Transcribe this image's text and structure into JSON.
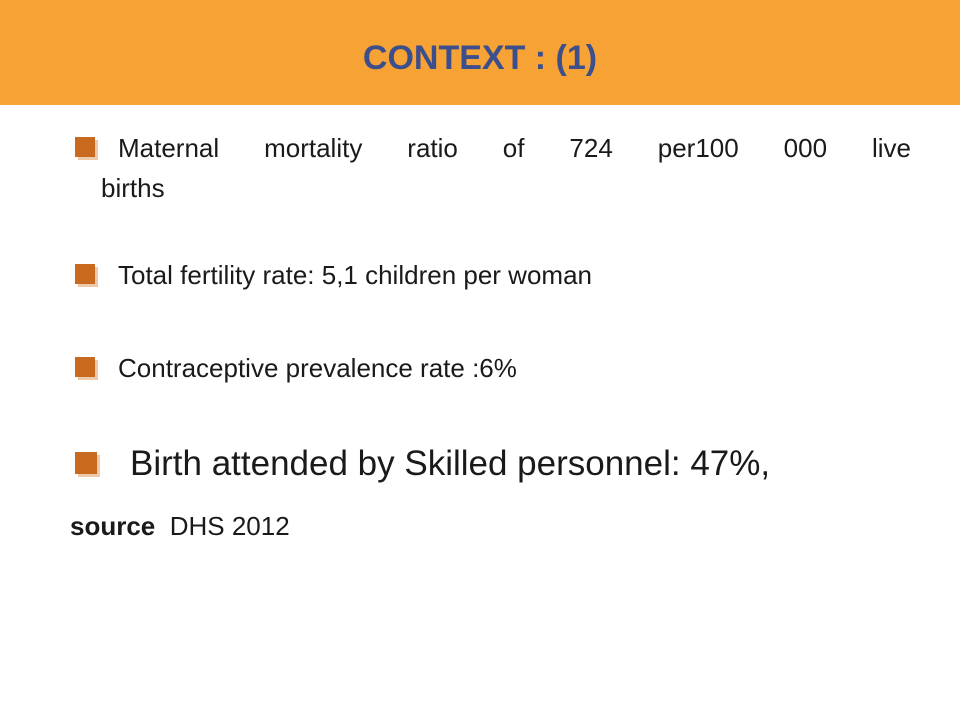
{
  "slide": {
    "title": "CONTEXT :  (1)",
    "title_color": "#3c4f8c",
    "header_bar_color": "#f7a234",
    "bullet_icon_color": "#c76a1f",
    "bullet_icon": "square-bullet-icon"
  },
  "bullets": [
    {
      "line1_words": [
        "Maternal",
        "mortality",
        "ratio",
        "of",
        "724",
        "per100",
        "000",
        "live"
      ],
      "line2": "births"
    },
    {
      "text": "Total fertility rate: 5,1 children per woman"
    },
    {
      "text": "Contraceptive prevalence rate :6%"
    },
    {
      "text": "Birth attended by Skilled personnel: 47%,"
    }
  ],
  "source": {
    "label": "source",
    "value": "DHS 2012"
  }
}
